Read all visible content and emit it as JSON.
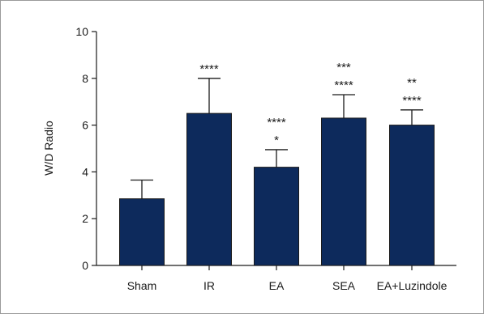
{
  "chart_data": {
    "type": "bar",
    "categories": [
      "Sham",
      "IR",
      "EA",
      "SEA",
      "EA+Luzindole"
    ],
    "values": [
      2.85,
      6.5,
      4.2,
      6.3,
      6.0
    ],
    "error_upper": [
      3.65,
      8.0,
      4.95,
      7.3,
      6.65
    ],
    "significance": [
      [],
      [
        "****"
      ],
      [
        "****",
        "*"
      ],
      [
        "***",
        "****"
      ],
      [
        "**",
        "****"
      ]
    ],
    "ylabel": "W/D Radio",
    "xlabel": "",
    "title": "",
    "ylim": [
      0,
      10
    ],
    "yticks": [
      0,
      2,
      4,
      6,
      8,
      10
    ],
    "grid": false,
    "bar_color": "#0d2a5c"
  }
}
